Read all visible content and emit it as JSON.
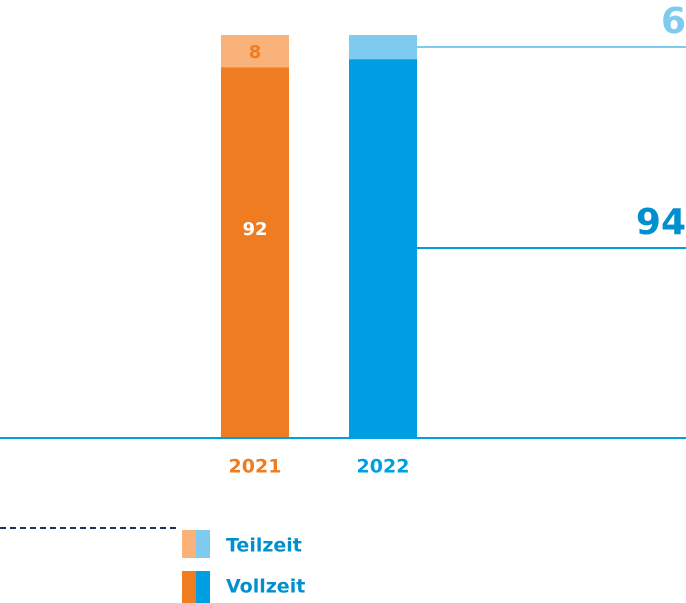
{
  "chart_data": {
    "type": "bar",
    "stacked": true,
    "categories": [
      "2021",
      "2022"
    ],
    "series": [
      {
        "name": "Vollzeit",
        "colors": [
          "#f07c22",
          "#009fe3"
        ],
        "values": [
          92,
          94
        ]
      },
      {
        "name": "Teilzeit",
        "colors": [
          "#f8b27a",
          "#7ecbef"
        ],
        "values": [
          8,
          6
        ]
      }
    ],
    "ylim": [
      0,
      100
    ]
  }
}
